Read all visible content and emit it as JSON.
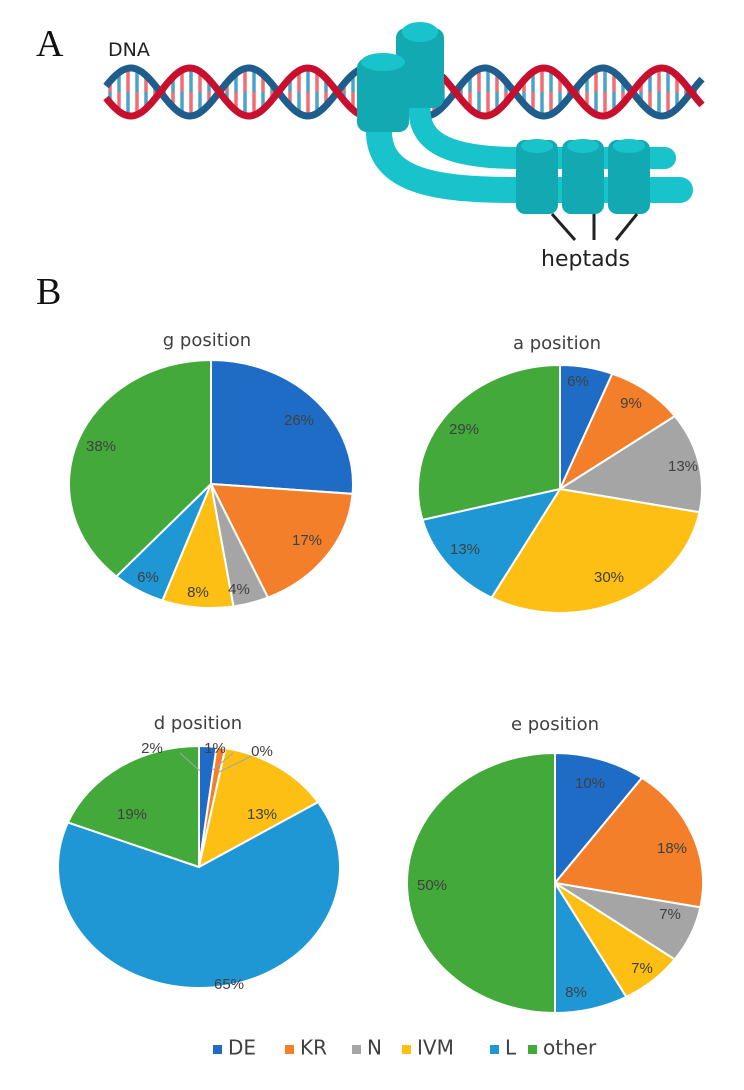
{
  "panel_a": {
    "letter": "A",
    "dna_label": "DNA",
    "heptads_label": "heptads",
    "colors": {
      "strand_red": "#c8102e",
      "strand_blue": "#1f5d8c",
      "rung_red": "#ee6e73",
      "rung_blue": "#4aa3c8",
      "protein_dark": "#12a9b3",
      "protein_light": "#19c3cc"
    }
  },
  "panel_b": {
    "letter": "B"
  },
  "chart_data": [
    {
      "type": "pie",
      "title": "g position",
      "categories": [
        "DE",
        "KR",
        "N",
        "IVM",
        "L",
        "other"
      ],
      "values": [
        26,
        17,
        4,
        8,
        6,
        38
      ],
      "labels": [
        "26%",
        "17%",
        "4%",
        "8%",
        "6%",
        "38%"
      ]
    },
    {
      "type": "pie",
      "title": "a position",
      "categories": [
        "DE",
        "KR",
        "N",
        "IVM",
        "L",
        "other"
      ],
      "values": [
        6,
        9,
        13,
        30,
        13,
        29
      ],
      "labels": [
        "6%",
        "9%",
        "13%",
        "30%",
        "13%",
        "29%"
      ]
    },
    {
      "type": "pie",
      "title": "d position",
      "categories": [
        "DE",
        "KR",
        "N",
        "IVM",
        "L",
        "other"
      ],
      "values": [
        2,
        1,
        0,
        13,
        65,
        19
      ],
      "labels": [
        "2%",
        "1%",
        "0%",
        "13%",
        "65%",
        "19%"
      ]
    },
    {
      "type": "pie",
      "title": "e position",
      "categories": [
        "DE",
        "KR",
        "N",
        "IVM",
        "L",
        "other"
      ],
      "values": [
        10,
        18,
        7,
        7,
        8,
        50
      ],
      "labels": [
        "10%",
        "18%",
        "7%",
        "7%",
        "8%",
        "50%"
      ]
    }
  ],
  "legend": {
    "entries": [
      {
        "name": "DE",
        "color": "#1f6cc6"
      },
      {
        "name": "KR",
        "color": "#f47f2a"
      },
      {
        "name": "N",
        "color": "#a5a5a5"
      },
      {
        "name": "IVM",
        "color": "#fdbf13"
      },
      {
        "name": "L",
        "color": "#1f97d4"
      },
      {
        "name": "other",
        "color": "#43a93a"
      }
    ]
  }
}
